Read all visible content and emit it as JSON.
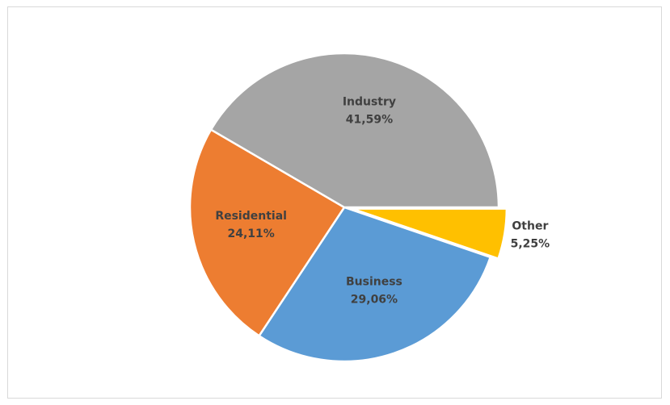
{
  "chart_data": {
    "type": "pie",
    "title": "",
    "start_angle_deg": 90,
    "direction": "clockwise",
    "colors": {
      "Other": "#ffc000",
      "Business": "#5b9bd5",
      "Residential": "#ed7d31",
      "Industry": "#a5a5a5"
    },
    "slices": [
      {
        "label": "Other",
        "value": 5.25,
        "value_label": "5,25%",
        "color": "#ffc000"
      },
      {
        "label": "Business",
        "value": 29.06,
        "value_label": "29,06%",
        "color": "#5b9bd5"
      },
      {
        "label": "Residential",
        "value": 24.11,
        "value_label": "24,11%",
        "color": "#ed7d31"
      },
      {
        "label": "Industry",
        "value": 41.59,
        "value_label": "41,59%",
        "color": "#a5a5a5"
      }
    ],
    "legend": "none"
  }
}
